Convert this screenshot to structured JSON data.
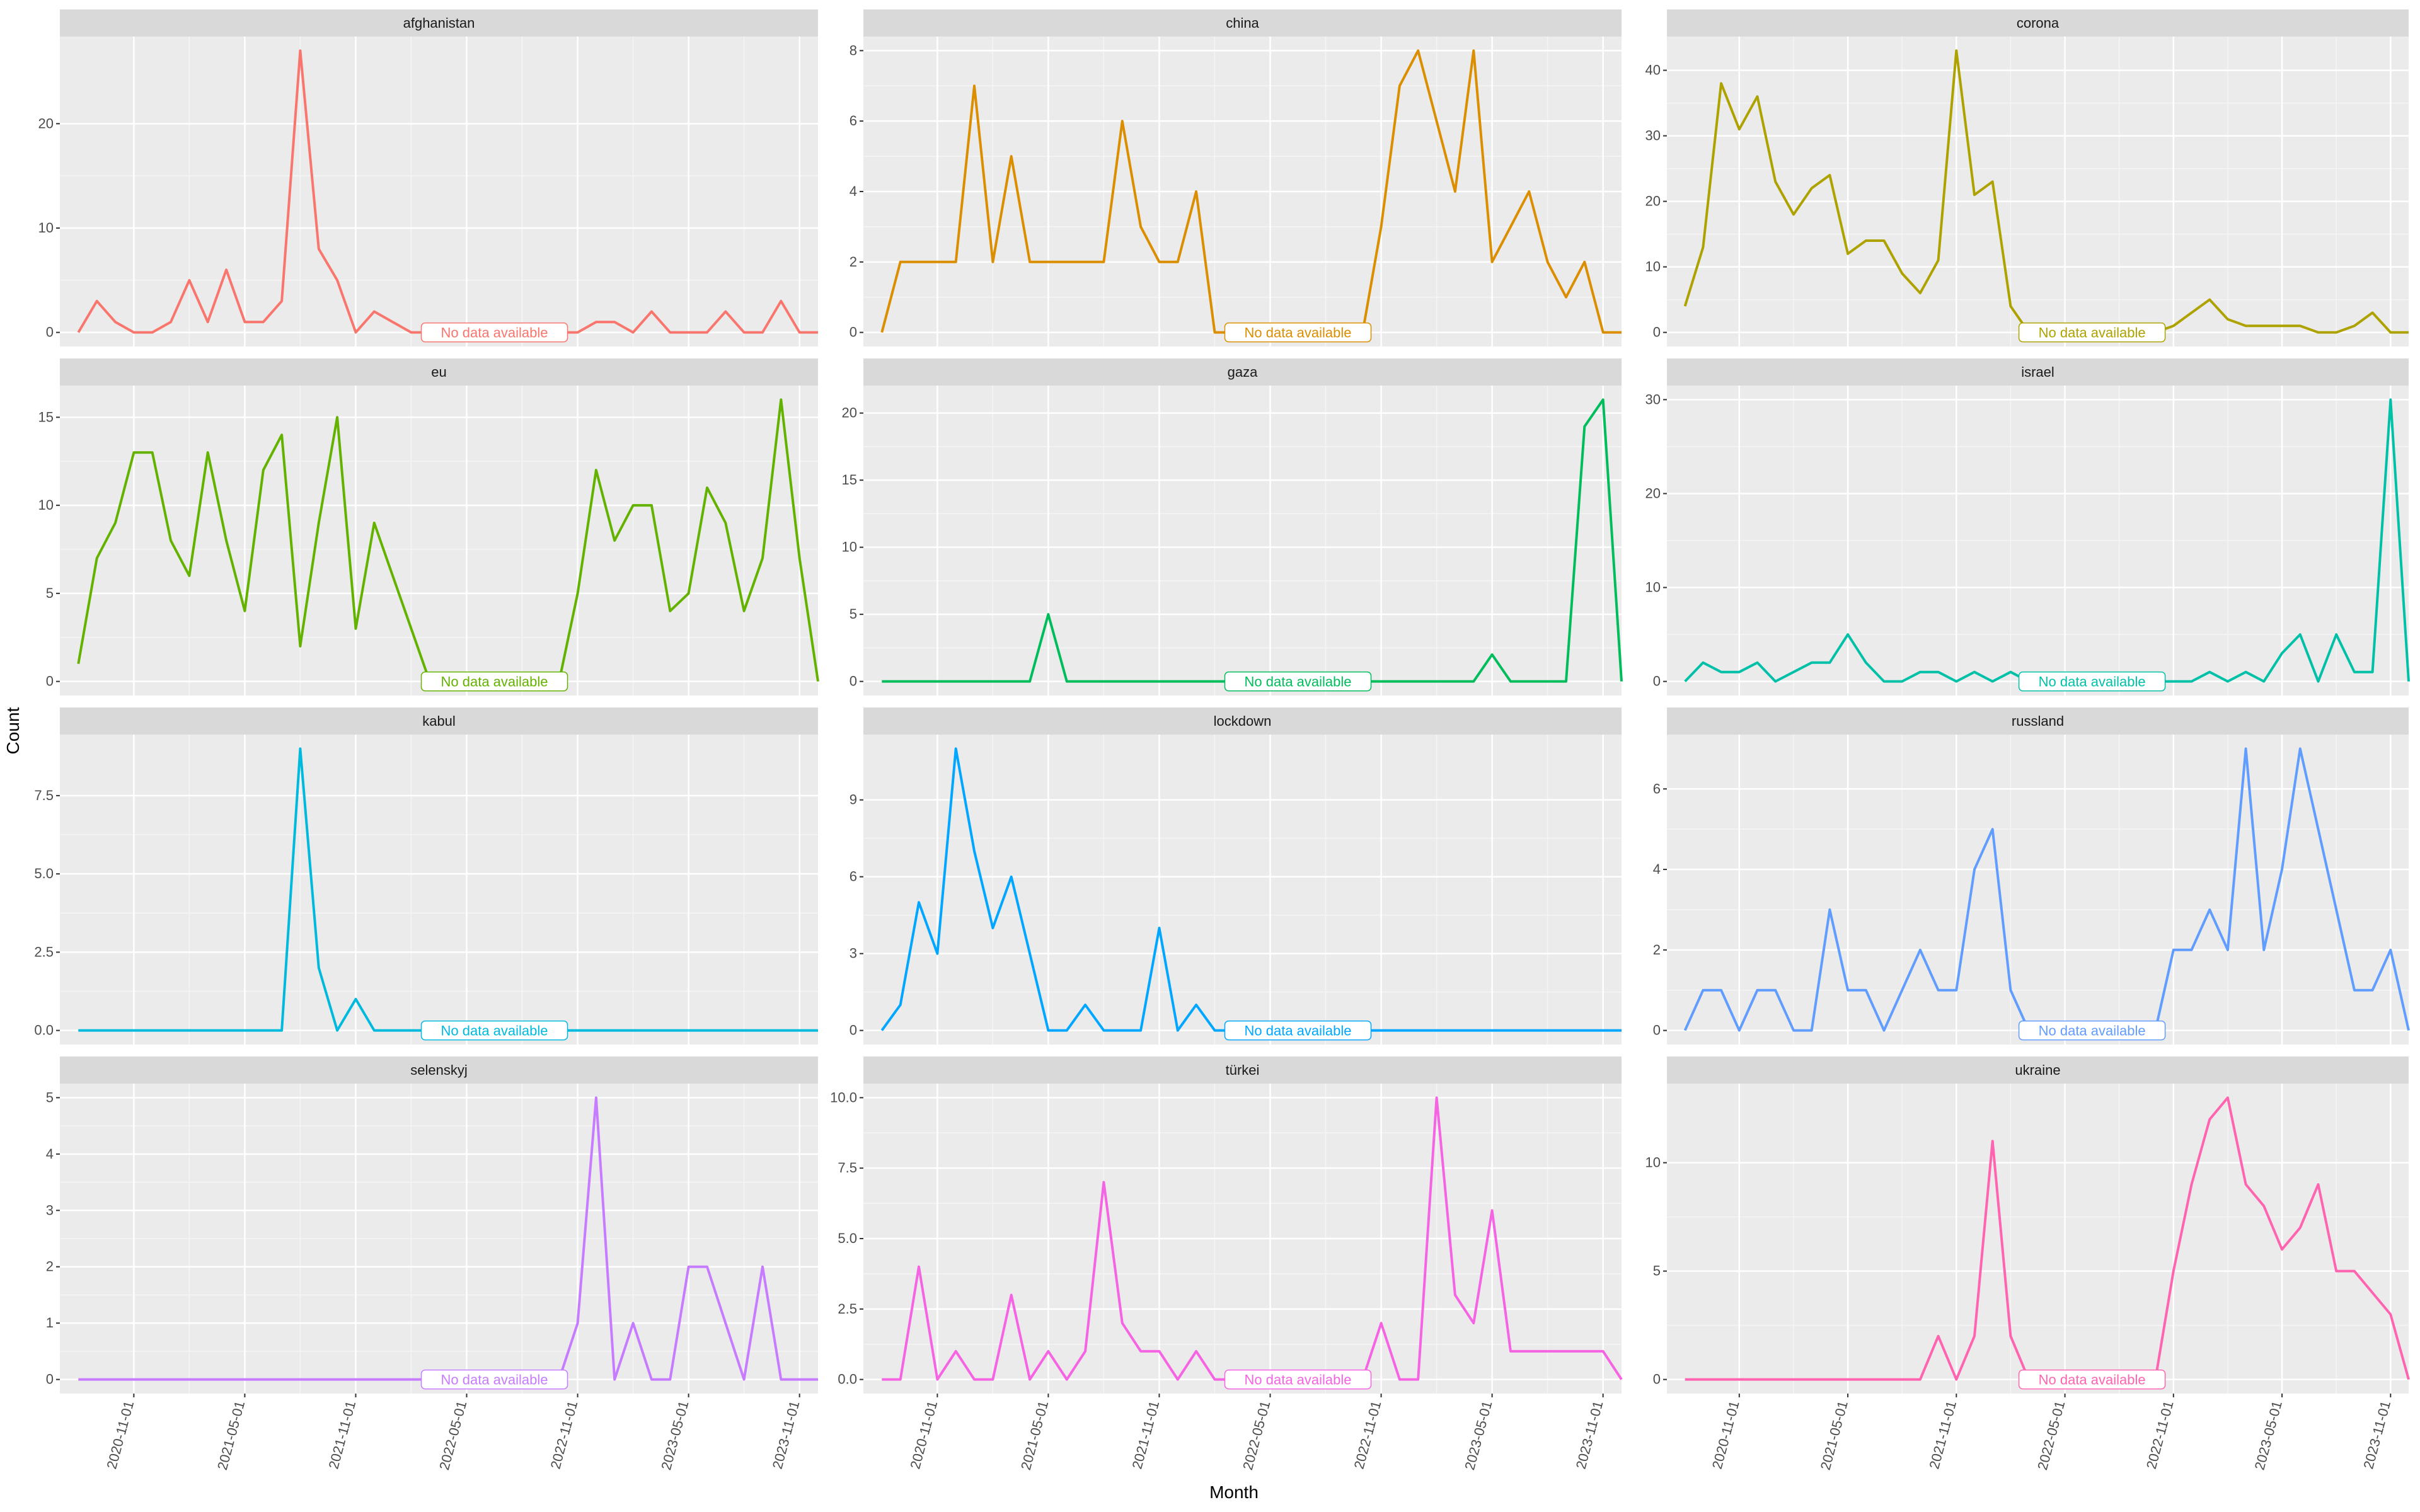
{
  "chart_data": {
    "type": "line",
    "facet": "wrap",
    "xlabel": "Month",
    "ylabel": "Count",
    "x_ticks": [
      "2020-11-01",
      "2021-05-01",
      "2021-11-01",
      "2022-05-01",
      "2022-11-01",
      "2023-05-01",
      "2023-11-01"
    ],
    "x_range": [
      "2020-07",
      "2023-12"
    ],
    "months": [
      "2020-08",
      "2020-09",
      "2020-10",
      "2020-11",
      "2020-12",
      "2021-01",
      "2021-02",
      "2021-03",
      "2021-04",
      "2021-05",
      "2021-06",
      "2021-07",
      "2021-08",
      "2021-09",
      "2021-10",
      "2021-11",
      "2021-12",
      "2022-01",
      "2022-02",
      "2022-03",
      "2022-04",
      "2022-05",
      "2022-06",
      "2022-07",
      "2022-08",
      "2022-09",
      "2022-10",
      "2022-11",
      "2022-12",
      "2023-01",
      "2023-02",
      "2023-03",
      "2023-04",
      "2023-05",
      "2023-06",
      "2023-07",
      "2023-08",
      "2023-09",
      "2023-10",
      "2023-11",
      "2023-12"
    ],
    "annotation": "No data available",
    "grid": true,
    "legend": "none",
    "panels": [
      {
        "name": "afghanistan",
        "color": "#F8766D",
        "ylim": [
          -1.35,
          28.35
        ],
        "y_ticks": [
          0,
          10,
          20
        ],
        "values": [
          0,
          3,
          1,
          0,
          0,
          1,
          5,
          1,
          6,
          1,
          1,
          3,
          27,
          8,
          5,
          0,
          2,
          1,
          0,
          0,
          0,
          0,
          0,
          0,
          0,
          0,
          0,
          0,
          1,
          1,
          0,
          2,
          0,
          0,
          0,
          2,
          0,
          0,
          3,
          0,
          0
        ]
      },
      {
        "name": "china",
        "color": "#DB8E00",
        "ylim": [
          -0.4,
          8.4
        ],
        "y_ticks": [
          0,
          2,
          4,
          6,
          8
        ],
        "values": [
          0,
          2,
          2,
          2,
          2,
          7,
          2,
          5,
          2,
          2,
          2,
          2,
          2,
          6,
          3,
          2,
          2,
          4,
          0,
          0,
          0,
          0,
          0,
          0,
          0,
          0,
          0,
          3,
          7,
          8,
          6,
          4,
          8,
          2,
          3,
          4,
          2,
          1,
          2,
          0,
          0
        ]
      },
      {
        "name": "corona",
        "color": "#AEA200",
        "ylim": [
          -2.15,
          45.15
        ],
        "y_ticks": [
          0,
          10,
          20,
          30,
          40
        ],
        "values": [
          4,
          13,
          38,
          31,
          36,
          23,
          18,
          22,
          24,
          12,
          14,
          14,
          9,
          6,
          11,
          43,
          21,
          23,
          4,
          0,
          0,
          0,
          0,
          0,
          0,
          0,
          0,
          1,
          3,
          5,
          2,
          1,
          1,
          1,
          1,
          0,
          0,
          1,
          3,
          0,
          0
        ]
      },
      {
        "name": "eu",
        "color": "#64B200",
        "ylim": [
          -0.8,
          16.8
        ],
        "y_ticks": [
          0,
          5,
          10,
          15
        ],
        "values": [
          1,
          7,
          9,
          13,
          13,
          8,
          6,
          13,
          8,
          4,
          12,
          14,
          2,
          9,
          15,
          3,
          9,
          6,
          3,
          0,
          0,
          0,
          0,
          0,
          0,
          0,
          0,
          5,
          12,
          8,
          10,
          10,
          4,
          5,
          11,
          9,
          4,
          7,
          16,
          7,
          0
        ]
      },
      {
        "name": "gaza",
        "color": "#00BD5C",
        "ylim": [
          -1.05,
          22.05
        ],
        "y_ticks": [
          0,
          5,
          10,
          15,
          20
        ],
        "values": [
          0,
          0,
          0,
          0,
          0,
          0,
          0,
          0,
          0,
          5,
          0,
          0,
          0,
          0,
          0,
          0,
          0,
          0,
          0,
          0,
          0,
          0,
          0,
          0,
          0,
          0,
          0,
          0,
          0,
          0,
          0,
          0,
          0,
          2,
          0,
          0,
          0,
          0,
          19,
          21,
          0
        ]
      },
      {
        "name": "israel",
        "color": "#00C1A7",
        "ylim": [
          -1.5,
          31.5
        ],
        "y_ticks": [
          0,
          10,
          20,
          30
        ],
        "values": [
          0,
          2,
          1,
          1,
          2,
          0,
          1,
          2,
          2,
          5,
          2,
          0,
          0,
          1,
          1,
          0,
          1,
          0,
          1,
          0,
          0,
          0,
          0,
          0,
          0,
          0,
          0,
          0,
          0,
          1,
          0,
          1,
          0,
          3,
          5,
          0,
          5,
          1,
          1,
          30,
          0
        ]
      },
      {
        "name": "kabul",
        "color": "#00BADE",
        "ylim": [
          -0.45,
          9.45
        ],
        "y_ticks": [
          0.0,
          2.5,
          5.0,
          7.5
        ],
        "tick_format": "fixed1",
        "values": [
          0,
          0,
          0,
          0,
          0,
          0,
          0,
          0,
          0,
          0,
          0,
          0,
          9,
          2,
          0,
          1,
          0,
          0,
          0,
          0,
          0,
          0,
          0,
          0,
          0,
          0,
          0,
          0,
          0,
          0,
          0,
          0,
          0,
          0,
          0,
          0,
          0,
          0,
          0,
          0,
          0
        ]
      },
      {
        "name": "lockdown",
        "color": "#00A6FF",
        "ylim": [
          -0.55,
          11.55
        ],
        "y_ticks": [
          0,
          3,
          6,
          9
        ],
        "values": [
          0,
          1,
          5,
          3,
          11,
          7,
          4,
          6,
          3,
          0,
          0,
          1,
          0,
          0,
          0,
          4,
          0,
          1,
          0,
          0,
          0,
          0,
          0,
          0,
          0,
          0,
          0,
          0,
          0,
          0,
          0,
          0,
          0,
          0,
          0,
          0,
          0,
          0,
          0,
          0,
          0
        ]
      },
      {
        "name": "russland",
        "color": "#619CFF",
        "ylim": [
          -0.35,
          7.35
        ],
        "y_ticks": [
          0,
          2,
          4,
          6
        ],
        "values": [
          0,
          1,
          1,
          0,
          1,
          1,
          0,
          0,
          3,
          1,
          1,
          0,
          1,
          2,
          1,
          1,
          4,
          5,
          1,
          0,
          0,
          0,
          0,
          0,
          0,
          0,
          0,
          2,
          2,
          3,
          2,
          7,
          2,
          4,
          7,
          5,
          3,
          1,
          1,
          2,
          0
        ]
      },
      {
        "name": "selenskyj",
        "color": "#C77CFF",
        "ylim": [
          -0.25,
          5.25
        ],
        "y_ticks": [
          0,
          1,
          2,
          3,
          4,
          5
        ],
        "values": [
          0,
          0,
          0,
          0,
          0,
          0,
          0,
          0,
          0,
          0,
          0,
          0,
          0,
          0,
          0,
          0,
          0,
          0,
          0,
          0,
          0,
          0,
          0,
          0,
          0,
          0,
          0,
          1,
          5,
          0,
          1,
          0,
          0,
          2,
          2,
          1,
          0,
          2,
          0,
          0,
          0
        ]
      },
      {
        "name": "türkei",
        "color": "#F564E3",
        "ylim": [
          -0.5,
          10.5
        ],
        "y_ticks": [
          0.0,
          2.5,
          5.0,
          7.5,
          10.0
        ],
        "tick_format": "fixed1",
        "values": [
          0,
          0,
          4,
          0,
          1,
          0,
          0,
          3,
          0,
          1,
          0,
          1,
          7,
          2,
          1,
          1,
          0,
          1,
          0,
          0,
          0,
          0,
          0,
          0,
          0,
          0,
          0,
          2,
          0,
          0,
          10,
          3,
          2,
          6,
          1,
          1,
          1,
          1,
          1,
          1,
          0
        ]
      },
      {
        "name": "ukraine",
        "color": "#FF64B0",
        "ylim": [
          -0.65,
          13.65
        ],
        "y_ticks": [
          0,
          5,
          10
        ],
        "values": [
          0,
          0,
          0,
          0,
          0,
          0,
          0,
          0,
          0,
          0,
          0,
          0,
          0,
          0,
          2,
          0,
          2,
          11,
          2,
          0,
          0,
          0,
          0,
          0,
          0,
          0,
          0,
          5,
          9,
          12,
          13,
          9,
          8,
          6,
          7,
          9,
          5,
          5,
          4,
          3,
          0
        ]
      }
    ]
  }
}
